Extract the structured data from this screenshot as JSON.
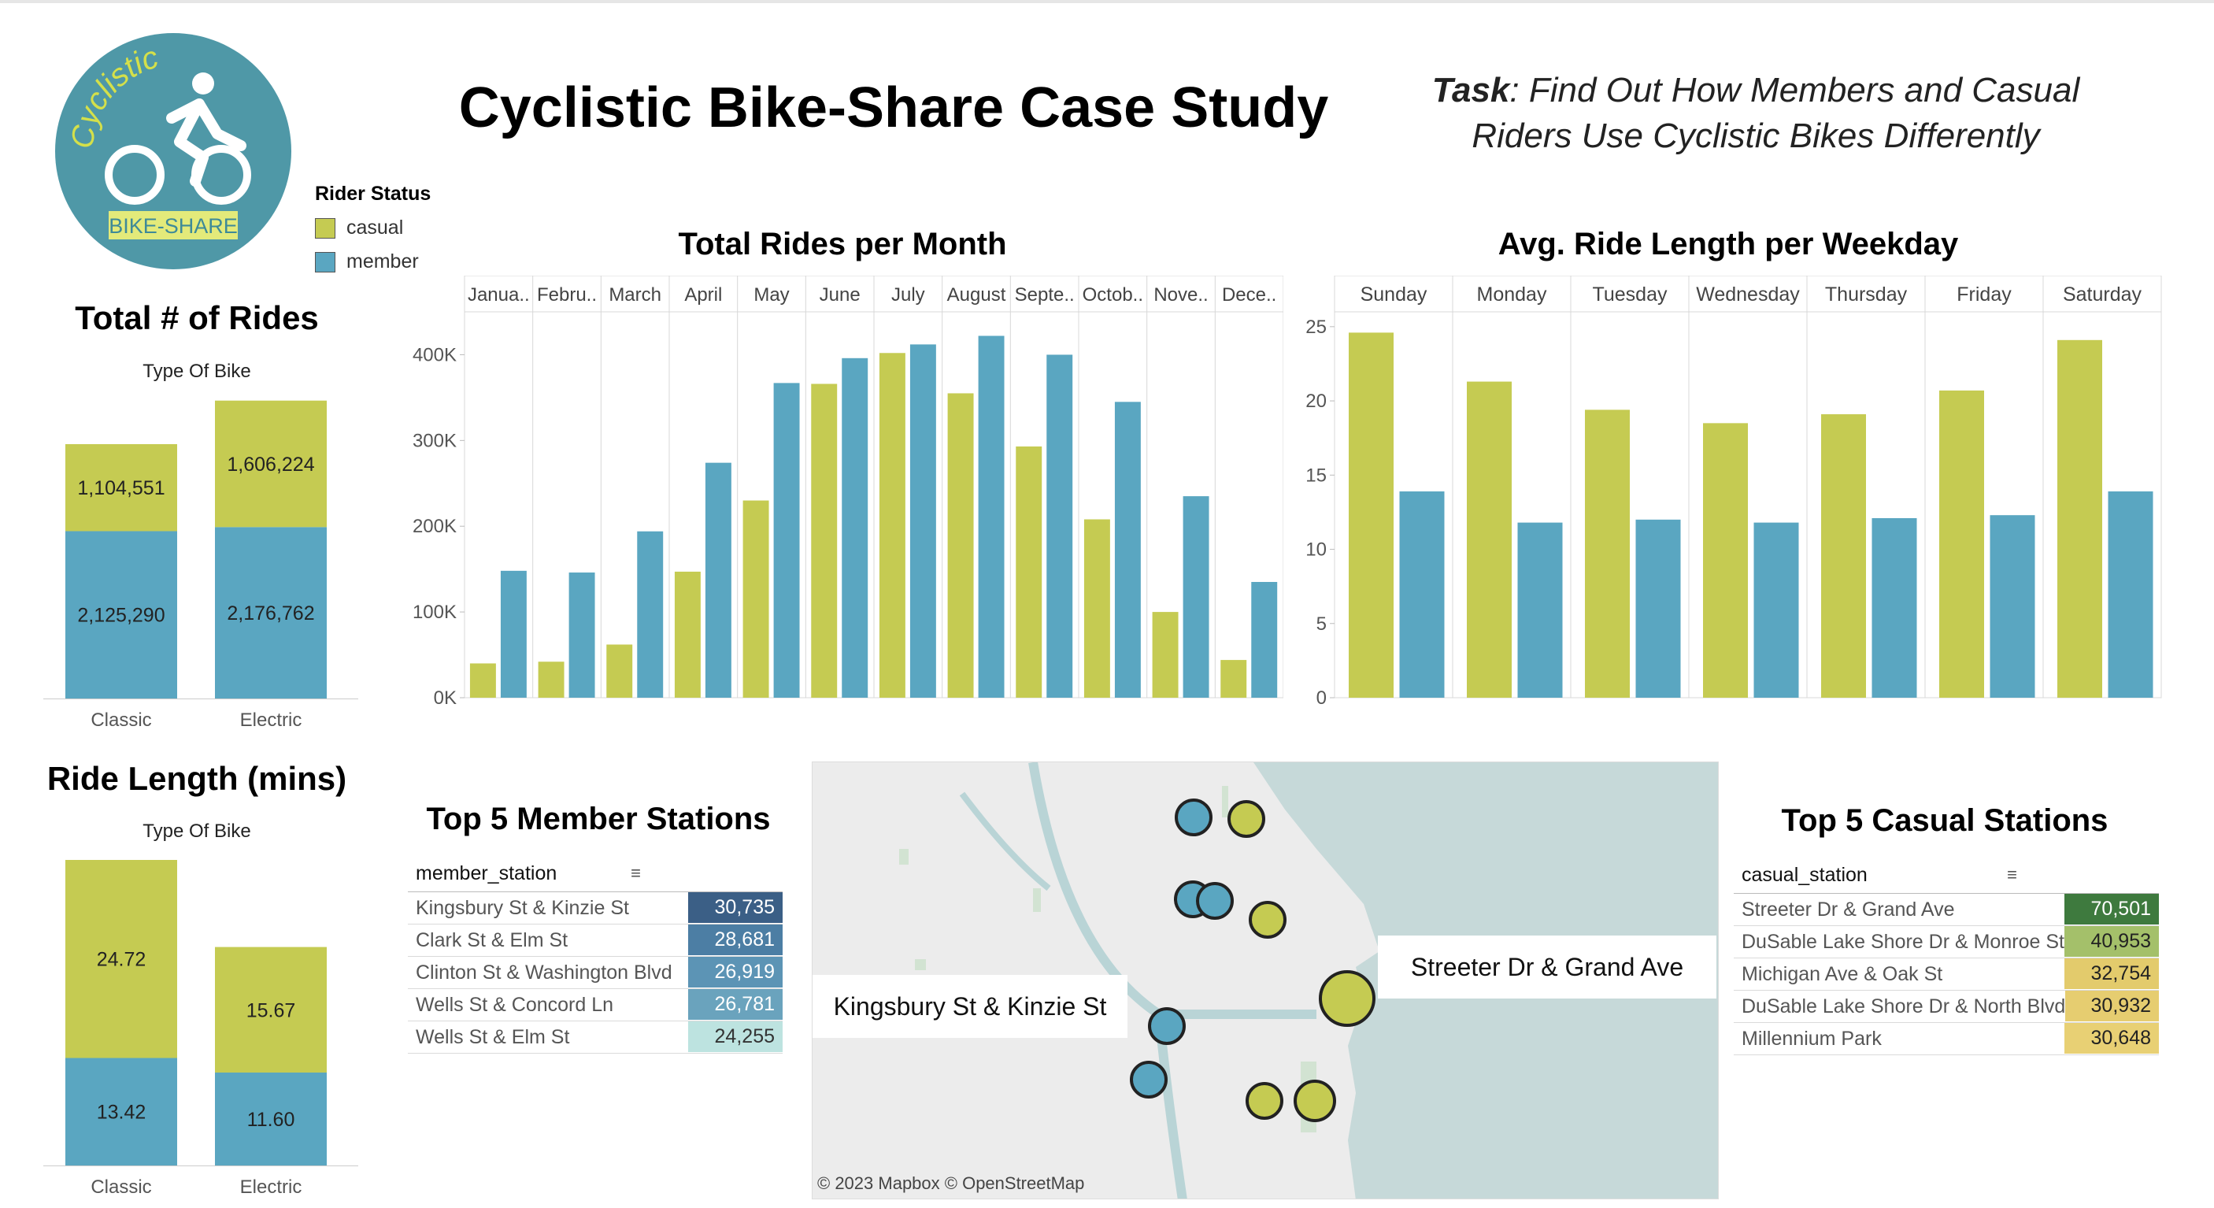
{
  "header": {
    "title": "Cyclistic Bike-Share Case Study",
    "task_label": "Task",
    "task_text": ": Find Out How Members and Casual Riders Use Cyclistic Bikes Differently"
  },
  "logo": {
    "text_top": "Cyclistic",
    "text_bottom": "BIKE-SHARE"
  },
  "colors": {
    "casual": "#c5cb52",
    "member": "#5aa6c1",
    "logo_bg": "#4f98a7"
  },
  "legend": {
    "title": "Rider Status",
    "items": [
      {
        "label": "casual",
        "color": "#c5cb52"
      },
      {
        "label": "member",
        "color": "#5aa6c1"
      }
    ]
  },
  "total_rides": {
    "title": "Total # of Rides",
    "subtitle": "Type Of Bike"
  },
  "ride_length": {
    "title": "Ride Length (mins)",
    "subtitle": "Type Of Bike"
  },
  "monthly": {
    "title": "Total Rides per Month"
  },
  "weekday": {
    "title": "Avg. Ride Length per Weekday"
  },
  "member_stations": {
    "title": "Top 5 Member Stations",
    "column": "member_station",
    "rows": [
      {
        "name": "Kingsbury St & Kinzie St",
        "value": "30,735",
        "bg": "#3b5f86",
        "fg": "#ffffff"
      },
      {
        "name": "Clark St & Elm St",
        "value": "28,681",
        "bg": "#4c7ea4",
        "fg": "#ffffff"
      },
      {
        "name": "Clinton St & Washington Blvd",
        "value": "26,919",
        "bg": "#5c94b5",
        "fg": "#ffffff"
      },
      {
        "name": "Wells St & Concord Ln",
        "value": "26,781",
        "bg": "#6aa3bd",
        "fg": "#ffffff"
      },
      {
        "name": "Wells St & Elm St",
        "value": "24,255",
        "bg": "#bde3e0",
        "fg": "#333333"
      }
    ]
  },
  "casual_stations": {
    "title": "Top 5 Casual Stations",
    "column": "casual_station",
    "rows": [
      {
        "name": "Streeter Dr & Grand Ave",
        "value": "70,501",
        "bg": "#3e7a3e",
        "fg": "#ffffff"
      },
      {
        "name": "DuSable Lake Shore Dr & Monroe St",
        "value": "40,953",
        "bg": "#a4c06a",
        "fg": "#222222"
      },
      {
        "name": "Michigan Ave & Oak St",
        "value": "32,754",
        "bg": "#e3cb6c",
        "fg": "#222222"
      },
      {
        "name": "DuSable Lake Shore Dr & North Blvd",
        "value": "30,932",
        "bg": "#e6cd70",
        "fg": "#222222"
      },
      {
        "name": "Millennium Park",
        "value": "30,648",
        "bg": "#e8d074",
        "fg": "#222222"
      }
    ]
  },
  "map": {
    "labels": [
      "Kingsbury St & Kinzie St",
      "Streeter Dr & Grand Ave"
    ],
    "attribution": "© 2023 Mapbox  © OpenStreetMap"
  },
  "chart_data": [
    {
      "type": "bar",
      "title": "Total # of Rides",
      "xlabel": "Type Of Bike",
      "stacked": true,
      "categories": [
        "Classic",
        "Electric"
      ],
      "series": [
        {
          "name": "member",
          "values": [
            2125290,
            2176762
          ],
          "labels": [
            "2,125,290",
            "2,176,762"
          ]
        },
        {
          "name": "casual",
          "values": [
            1104551,
            1606224
          ],
          "labels": [
            "1,104,551",
            "1,606,224"
          ]
        }
      ]
    },
    {
      "type": "bar",
      "title": "Ride Length (mins)",
      "xlabel": "Type Of Bike",
      "stacked": true,
      "categories": [
        "Classic",
        "Electric"
      ],
      "series": [
        {
          "name": "member",
          "values": [
            13.42,
            11.6
          ],
          "labels": [
            "13.42",
            "11.60"
          ]
        },
        {
          "name": "casual",
          "values": [
            24.72,
            15.67
          ],
          "labels": [
            "24.72",
            "15.67"
          ]
        }
      ]
    },
    {
      "type": "bar",
      "title": "Total Rides per Month",
      "categories": [
        "Janua..",
        "Febru..",
        "March",
        "April",
        "May",
        "June",
        "July",
        "August",
        "Septe..",
        "Octob..",
        "Nove..",
        "Dece.."
      ],
      "ylim": [
        0,
        450000
      ],
      "yticks": [
        0,
        100000,
        200000,
        300000,
        400000
      ],
      "ytick_labels": [
        "0K",
        "100K",
        "200K",
        "300K",
        "400K"
      ],
      "series": [
        {
          "name": "casual",
          "values": [
            40000,
            42000,
            62000,
            147000,
            230000,
            366000,
            402000,
            355000,
            293000,
            208000,
            100000,
            44000
          ]
        },
        {
          "name": "member",
          "values": [
            148000,
            146000,
            194000,
            274000,
            367000,
            396000,
            412000,
            422000,
            400000,
            345000,
            235000,
            135000
          ]
        }
      ]
    },
    {
      "type": "bar",
      "title": "Avg. Ride Length per Weekday",
      "categories": [
        "Sunday",
        "Monday",
        "Tuesday",
        "Wednesday",
        "Thursday",
        "Friday",
        "Saturday"
      ],
      "ylim": [
        0,
        26
      ],
      "yticks": [
        0,
        5,
        10,
        15,
        20,
        25
      ],
      "series": [
        {
          "name": "casual",
          "values": [
            24.6,
            21.3,
            19.4,
            18.5,
            19.1,
            20.7,
            24.1
          ]
        },
        {
          "name": "member",
          "values": [
            13.9,
            11.8,
            12.0,
            11.8,
            12.1,
            12.3,
            13.9
          ]
        }
      ]
    }
  ]
}
